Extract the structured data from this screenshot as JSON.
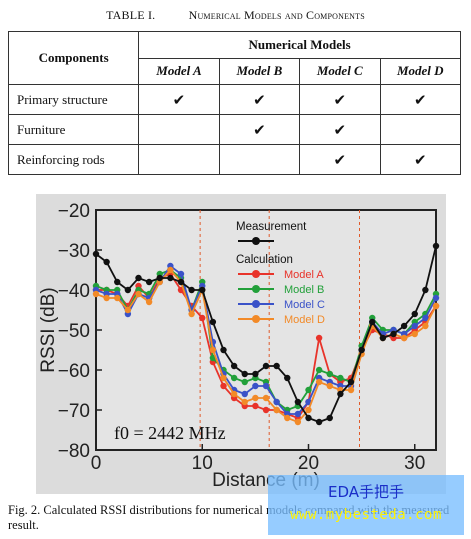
{
  "table": {
    "caption_number": "TABLE I.",
    "caption_title": "Numerical Models and Components",
    "components_header": "Components",
    "group_header": "Numerical Models",
    "model_headers": [
      "Model A",
      "Model B",
      "Model C",
      "Model D"
    ],
    "check_glyph": "✔",
    "rows": [
      {
        "component": "Primary structure",
        "checks": [
          true,
          true,
          true,
          true
        ]
      },
      {
        "component": "Furniture",
        "checks": [
          false,
          true,
          true,
          false
        ]
      },
      {
        "component": "Reinforcing rods",
        "checks": [
          false,
          false,
          true,
          true
        ]
      }
    ]
  },
  "chart_data": {
    "type": "line",
    "xlabel": "Distance (m)",
    "ylabel": "RSSI (dB)",
    "xlim": [
      0,
      32
    ],
    "ylim": [
      -80,
      -20
    ],
    "xticks": [
      0,
      10,
      20,
      30
    ],
    "yticks": [
      -20,
      -30,
      -40,
      -50,
      -60,
      -70,
      -80
    ],
    "grid": false,
    "vlines": [
      9.8,
      16.3,
      24.8
    ],
    "annotation": "f0 = 2442 MHz",
    "legend_header_measurement": "Measurement",
    "legend_header_calculation": "Calculation",
    "legend_placement": "top-center",
    "series": [
      {
        "name": "Measurement",
        "color": "#111111",
        "x": [
          0,
          1,
          2,
          3,
          4,
          5,
          6,
          7,
          8,
          9,
          10,
          11,
          12,
          13,
          14,
          15,
          16,
          17,
          18,
          19,
          20,
          21,
          22,
          23,
          24,
          25,
          26,
          27,
          28,
          29,
          30,
          31,
          32
        ],
        "values": [
          -31,
          -33,
          -38,
          -40,
          -37,
          -38,
          -37,
          -37,
          -38,
          -40,
          -40,
          -48,
          -55,
          -59,
          -61,
          -61,
          -59,
          -59,
          -62,
          -68,
          -72,
          -73,
          -72,
          -66,
          -63,
          -55,
          -48,
          -52,
          -51,
          -49,
          -46,
          -40,
          -29
        ]
      },
      {
        "name": "Model A",
        "color": "#e8332a",
        "x": [
          0,
          1,
          2,
          3,
          4,
          5,
          6,
          7,
          8,
          9,
          10,
          11,
          12,
          13,
          14,
          15,
          16,
          17,
          18,
          19,
          20,
          21,
          22,
          23,
          24,
          25,
          26,
          27,
          28,
          29,
          30,
          31,
          32
        ],
        "values": [
          -40,
          -40,
          -41,
          -44,
          -39,
          -42,
          -37,
          -36,
          -40,
          -44,
          -47,
          -58,
          -64,
          -67,
          -69,
          -69,
          -70,
          -70,
          -71,
          -72,
          -68,
          -52,
          -61,
          -63,
          -62,
          -55,
          -50,
          -51,
          -52,
          -52,
          -50,
          -48,
          -44
        ]
      },
      {
        "name": "Model B",
        "color": "#22a03a",
        "x": [
          0,
          1,
          2,
          3,
          4,
          5,
          6,
          7,
          8,
          9,
          10,
          11,
          12,
          13,
          14,
          15,
          16,
          17,
          18,
          19,
          20,
          21,
          22,
          23,
          24,
          25,
          26,
          27,
          28,
          29,
          30,
          31,
          32
        ],
        "values": [
          -39,
          -40,
          -40,
          -45,
          -40,
          -41,
          -36,
          -35,
          -37,
          -45,
          -38,
          -57,
          -60,
          -62,
          -63,
          -62,
          -63,
          -68,
          -70,
          -69,
          -65,
          -60,
          -61,
          -62,
          -63,
          -54,
          -47,
          -50,
          -50,
          -51,
          -48,
          -46,
          -41
        ]
      },
      {
        "name": "Model C",
        "color": "#3a52c8",
        "x": [
          0,
          1,
          2,
          3,
          4,
          5,
          6,
          7,
          8,
          9,
          10,
          11,
          12,
          13,
          14,
          15,
          16,
          17,
          18,
          19,
          20,
          21,
          22,
          23,
          24,
          25,
          26,
          27,
          28,
          29,
          30,
          31,
          32
        ],
        "values": [
          -40,
          -41,
          -41,
          -46,
          -41,
          -42,
          -38,
          -34,
          -36,
          -45,
          -39,
          -53,
          -61,
          -65,
          -66,
          -64,
          -64,
          -68,
          -71,
          -71,
          -68,
          -62,
          -63,
          -64,
          -64,
          -55,
          -48,
          -51,
          -50,
          -51,
          -49,
          -47,
          -42
        ]
      },
      {
        "name": "Model D",
        "color": "#f28a28",
        "x": [
          0,
          1,
          2,
          3,
          4,
          5,
          6,
          7,
          8,
          9,
          10,
          11,
          12,
          13,
          14,
          15,
          16,
          17,
          18,
          19,
          20,
          21,
          22,
          23,
          24,
          25,
          26,
          27,
          28,
          29,
          30,
          31,
          32
        ],
        "values": [
          -41,
          -42,
          -42,
          -45,
          -41,
          -43,
          -38,
          -35,
          -38,
          -46,
          -40,
          -55,
          -62,
          -66,
          -68,
          -67,
          -67,
          -70,
          -72,
          -73,
          -70,
          -63,
          -64,
          -65,
          -65,
          -56,
          -49,
          -52,
          -51,
          -52,
          -51,
          -49,
          -44
        ]
      }
    ]
  },
  "figure": {
    "caption": "Fig. 2. Calculated RSSI distributions for numerical models compared with the measured result."
  },
  "watermark": {
    "title": "EDA手把手",
    "url": "www.mybesteda.com",
    "color": "#78beff"
  }
}
